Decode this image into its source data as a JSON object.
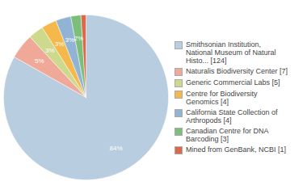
{
  "chart_data": {
    "type": "pie",
    "categories": [
      "Smithsonian Institution,\nNational Museum of Natural\nHisto... [124]",
      "Naturalis Biodiversity Center [7]",
      "Generic Commercial Labs [5]",
      "Centre for Biodiversity\nGenomics [4]",
      "California State Collection of\nArthropods [4]",
      "Canadian Centre for DNA\nBarcoding [3]",
      "Mined from GenBank, NCBI [1]"
    ],
    "values": [
      84,
      5,
      3,
      3,
      3,
      2,
      1
    ],
    "value_labels": [
      "84%",
      "5%",
      "3%",
      "3%",
      "3%",
      "2%",
      null
    ],
    "data_labels": true,
    "colors": [
      "#b8cde0",
      "#f0a898",
      "#cdd98c",
      "#f5b84a",
      "#92b4d4",
      "#7bbf7a",
      "#d9694a"
    ],
    "legend": "right"
  }
}
